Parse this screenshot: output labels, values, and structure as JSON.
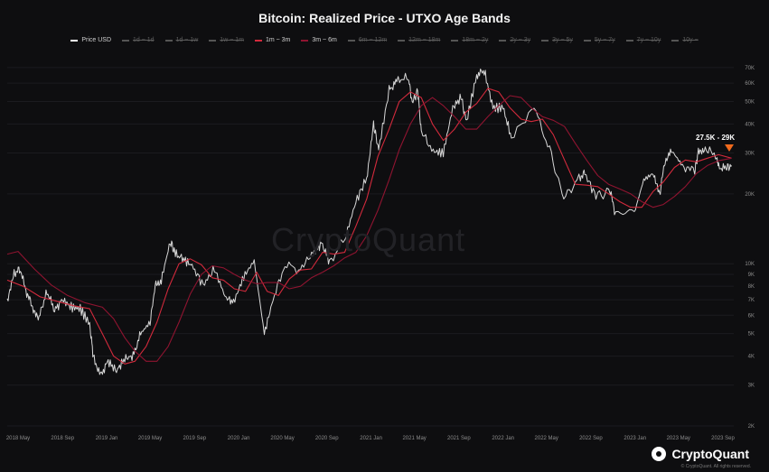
{
  "chart_data": {
    "type": "line",
    "title": "Bitcoin: Realized Price - UTXO Age Bands",
    "yscale": "log",
    "ylim": [
      2000,
      80000
    ],
    "x_ticks": [
      "2018 May",
      "2018 Sep",
      "2019 Jan",
      "2019 May",
      "2019 Sep",
      "2020 Jan",
      "2020 May",
      "2020 Sep",
      "2021 Jan",
      "2021 May",
      "2021 Sep",
      "2022 Jan",
      "2022 May",
      "2022 Sep",
      "2023 Jan",
      "2023 May",
      "2023 Sep"
    ],
    "y_ticks": [
      "70K",
      "60K",
      "50K",
      "40K",
      "30K",
      "20K",
      "10K",
      "9K",
      "8K",
      "7K",
      "6K",
      "5K",
      "4K",
      "3K",
      "2K"
    ],
    "y_tick_values": [
      70000,
      60000,
      50000,
      40000,
      30000,
      20000,
      10000,
      9000,
      8000,
      7000,
      6000,
      5000,
      4000,
      3000,
      2000
    ],
    "legend": [
      {
        "name": "Price USD",
        "color": "#ffffff",
        "active": true
      },
      {
        "name": "1d ~ 1d",
        "color": "#777777",
        "active": false
      },
      {
        "name": "1d ~ 1w",
        "color": "#777777",
        "active": false
      },
      {
        "name": "1w ~ 1m",
        "color": "#777777",
        "active": false
      },
      {
        "name": "1m ~ 3m",
        "color": "#d22a3c",
        "active": true
      },
      {
        "name": "3m ~ 6m",
        "color": "#8f1430",
        "active": true
      },
      {
        "name": "6m ~ 12m",
        "color": "#777777",
        "active": false
      },
      {
        "name": "12m ~ 18m",
        "color": "#777777",
        "active": false
      },
      {
        "name": "18m ~ 2y",
        "color": "#777777",
        "active": false
      },
      {
        "name": "2y ~ 3y",
        "color": "#777777",
        "active": false
      },
      {
        "name": "3y ~ 5y",
        "color": "#777777",
        "active": false
      },
      {
        "name": "5y ~ 7y",
        "color": "#777777",
        "active": false
      },
      {
        "name": "7y ~ 10y",
        "color": "#777777",
        "active": false
      },
      {
        "name": "10y ~",
        "color": "#777777",
        "active": false
      }
    ],
    "series": [
      {
        "name": "Price USD",
        "color": "#d8d8d8",
        "points": [
          [
            "2018-04-01",
            7000
          ],
          [
            "2018-04-20",
            9000
          ],
          [
            "2018-05-05",
            9500
          ],
          [
            "2018-05-25",
            7500
          ],
          [
            "2018-06-10",
            6500
          ],
          [
            "2018-06-28",
            5900
          ],
          [
            "2018-07-20",
            7600
          ],
          [
            "2018-08-10",
            6300
          ],
          [
            "2018-09-01",
            7000
          ],
          [
            "2018-09-25",
            6500
          ],
          [
            "2018-10-20",
            6400
          ],
          [
            "2018-11-15",
            5500
          ],
          [
            "2018-11-25",
            4000
          ],
          [
            "2018-12-15",
            3300
          ],
          [
            "2019-01-05",
            3800
          ],
          [
            "2019-01-28",
            3450
          ],
          [
            "2019-02-20",
            3900
          ],
          [
            "2019-03-15",
            4000
          ],
          [
            "2019-04-05",
            5000
          ],
          [
            "2019-05-01",
            5600
          ],
          [
            "2019-05-15",
            8000
          ],
          [
            "2019-06-01",
            8500
          ],
          [
            "2019-06-26",
            12500
          ],
          [
            "2019-07-10",
            11000
          ],
          [
            "2019-08-01",
            10500
          ],
          [
            "2019-08-25",
            9800
          ],
          [
            "2019-09-25",
            8100
          ],
          [
            "2019-10-26",
            9500
          ],
          [
            "2019-11-25",
            7200
          ],
          [
            "2019-12-18",
            6800
          ],
          [
            "2020-01-15",
            8800
          ],
          [
            "2020-02-13",
            10300
          ],
          [
            "2020-03-12",
            5000
          ],
          [
            "2020-04-05",
            7000
          ],
          [
            "2020-05-08",
            9900
          ],
          [
            "2020-06-20",
            9400
          ],
          [
            "2020-07-25",
            11000
          ],
          [
            "2020-08-17",
            12300
          ],
          [
            "2020-09-08",
            10200
          ],
          [
            "2020-10-21",
            12800
          ],
          [
            "2020-11-20",
            18500
          ],
          [
            "2020-12-20",
            23500
          ],
          [
            "2021-01-08",
            40000
          ],
          [
            "2021-01-22",
            31000
          ],
          [
            "2021-02-20",
            56000
          ],
          [
            "2021-03-13",
            61000
          ],
          [
            "2021-04-14",
            64000
          ],
          [
            "2021-04-25",
            49000
          ],
          [
            "2021-05-10",
            56000
          ],
          [
            "2021-05-20",
            37000
          ],
          [
            "2021-06-22",
            30500
          ],
          [
            "2021-07-20",
            30000
          ],
          [
            "2021-08-15",
            47000
          ],
          [
            "2021-09-07",
            52000
          ],
          [
            "2021-09-22",
            41000
          ],
          [
            "2021-10-20",
            65000
          ],
          [
            "2021-11-10",
            68000
          ],
          [
            "2021-12-04",
            47000
          ],
          [
            "2022-01-01",
            47000
          ],
          [
            "2022-01-24",
            35000
          ],
          [
            "2022-03-28",
            47000
          ],
          [
            "2022-05-10",
            31000
          ],
          [
            "2022-06-18",
            19000
          ],
          [
            "2022-07-30",
            23500
          ],
          [
            "2022-08-15",
            24500
          ],
          [
            "2022-09-15",
            19500
          ],
          [
            "2022-10-25",
            20500
          ],
          [
            "2022-11-09",
            16000
          ],
          [
            "2022-12-30",
            16500
          ],
          [
            "2023-01-25",
            23000
          ],
          [
            "2023-02-20",
            24500
          ],
          [
            "2023-03-10",
            20000
          ],
          [
            "2023-03-25",
            28000
          ],
          [
            "2023-04-14",
            30500
          ],
          [
            "2023-05-12",
            26500
          ],
          [
            "2023-06-15",
            25000
          ],
          [
            "2023-06-25",
            30500
          ],
          [
            "2023-07-14",
            31500
          ],
          [
            "2023-08-16",
            29000
          ],
          [
            "2023-08-20",
            26000
          ],
          [
            "2023-09-10",
            25800
          ],
          [
            "2023-09-25",
            26500
          ]
        ]
      },
      {
        "name": "1m ~ 3m",
        "color": "#d22a3c",
        "points": [
          [
            "2018-04-01",
            8500
          ],
          [
            "2018-05-15",
            8000
          ],
          [
            "2018-07-01",
            7200
          ],
          [
            "2018-08-15",
            6900
          ],
          [
            "2018-10-01",
            6600
          ],
          [
            "2018-11-15",
            6400
          ],
          [
            "2018-12-20",
            5000
          ],
          [
            "2019-01-20",
            4000
          ],
          [
            "2019-02-20",
            3700
          ],
          [
            "2019-03-20",
            3800
          ],
          [
            "2019-04-20",
            4400
          ],
          [
            "2019-05-20",
            5600
          ],
          [
            "2019-06-20",
            7800
          ],
          [
            "2019-07-20",
            10000
          ],
          [
            "2019-08-20",
            10500
          ],
          [
            "2019-09-20",
            9900
          ],
          [
            "2019-10-20",
            8700
          ],
          [
            "2019-11-20",
            8500
          ],
          [
            "2019-12-20",
            7800
          ],
          [
            "2020-01-20",
            7600
          ],
          [
            "2020-02-20",
            9200
          ],
          [
            "2020-03-20",
            7600
          ],
          [
            "2020-04-20",
            7300
          ],
          [
            "2020-05-20",
            8600
          ],
          [
            "2020-06-20",
            9400
          ],
          [
            "2020-07-20",
            9500
          ],
          [
            "2020-08-20",
            11200
          ],
          [
            "2020-09-20",
            11000
          ],
          [
            "2020-10-20",
            11200
          ],
          [
            "2020-11-20",
            14500
          ],
          [
            "2020-12-20",
            19000
          ],
          [
            "2021-01-20",
            29000
          ],
          [
            "2021-02-20",
            38000
          ],
          [
            "2021-03-20",
            50000
          ],
          [
            "2021-04-20",
            55000
          ],
          [
            "2021-05-20",
            52000
          ],
          [
            "2021-06-20",
            40000
          ],
          [
            "2021-07-20",
            34000
          ],
          [
            "2021-08-20",
            38000
          ],
          [
            "2021-09-20",
            45000
          ],
          [
            "2021-10-20",
            49000
          ],
          [
            "2021-11-20",
            57000
          ],
          [
            "2021-12-20",
            55000
          ],
          [
            "2022-01-20",
            47000
          ],
          [
            "2022-02-20",
            42000
          ],
          [
            "2022-03-20",
            41000
          ],
          [
            "2022-04-20",
            42000
          ],
          [
            "2022-05-20",
            36000
          ],
          [
            "2022-06-20",
            28000
          ],
          [
            "2022-07-20",
            22000
          ],
          [
            "2022-08-20",
            21800
          ],
          [
            "2022-09-20",
            21500
          ],
          [
            "2022-10-20",
            20000
          ],
          [
            "2022-11-20",
            18500
          ],
          [
            "2022-12-20",
            17500
          ],
          [
            "2023-01-20",
            17500
          ],
          [
            "2023-02-20",
            20500
          ],
          [
            "2023-03-20",
            22500
          ],
          [
            "2023-04-20",
            26000
          ],
          [
            "2023-05-20",
            28000
          ],
          [
            "2023-06-20",
            27500
          ],
          [
            "2023-07-20",
            28500
          ],
          [
            "2023-08-20",
            29500
          ],
          [
            "2023-09-25",
            28500
          ]
        ]
      },
      {
        "name": "3m ~ 6m",
        "color": "#8f1430",
        "points": [
          [
            "2018-04-01",
            11000
          ],
          [
            "2018-05-01",
            11300
          ],
          [
            "2018-06-15",
            9500
          ],
          [
            "2018-08-01",
            8100
          ],
          [
            "2018-09-15",
            7300
          ],
          [
            "2018-11-01",
            6800
          ],
          [
            "2018-12-20",
            6500
          ],
          [
            "2019-01-20",
            5800
          ],
          [
            "2019-02-20",
            4800
          ],
          [
            "2019-03-20",
            4200
          ],
          [
            "2019-04-20",
            3800
          ],
          [
            "2019-05-20",
            3800
          ],
          [
            "2019-06-20",
            4400
          ],
          [
            "2019-07-20",
            5600
          ],
          [
            "2019-08-20",
            7400
          ],
          [
            "2019-09-20",
            9000
          ],
          [
            "2019-10-20",
            9800
          ],
          [
            "2019-11-20",
            9600
          ],
          [
            "2019-12-20",
            9000
          ],
          [
            "2020-01-20",
            8500
          ],
          [
            "2020-02-20",
            8200
          ],
          [
            "2020-03-20",
            8300
          ],
          [
            "2020-04-20",
            8300
          ],
          [
            "2020-05-20",
            7800
          ],
          [
            "2020-06-20",
            8000
          ],
          [
            "2020-07-20",
            8700
          ],
          [
            "2020-08-20",
            9200
          ],
          [
            "2020-09-20",
            9800
          ],
          [
            "2020-10-20",
            10600
          ],
          [
            "2020-11-20",
            11200
          ],
          [
            "2020-12-20",
            13200
          ],
          [
            "2021-01-20",
            17000
          ],
          [
            "2021-02-20",
            23000
          ],
          [
            "2021-03-20",
            31000
          ],
          [
            "2021-04-20",
            40000
          ],
          [
            "2021-05-20",
            48000
          ],
          [
            "2021-06-20",
            52000
          ],
          [
            "2021-07-20",
            48000
          ],
          [
            "2021-08-20",
            43000
          ],
          [
            "2021-09-20",
            38000
          ],
          [
            "2021-10-20",
            38000
          ],
          [
            "2021-11-20",
            43000
          ],
          [
            "2021-12-20",
            48000
          ],
          [
            "2022-01-20",
            53000
          ],
          [
            "2022-02-20",
            52000
          ],
          [
            "2022-03-20",
            47000
          ],
          [
            "2022-04-20",
            43000
          ],
          [
            "2022-05-20",
            41500
          ],
          [
            "2022-06-20",
            39000
          ],
          [
            "2022-07-20",
            33000
          ],
          [
            "2022-08-20",
            28000
          ],
          [
            "2022-09-20",
            24000
          ],
          [
            "2022-10-20",
            22000
          ],
          [
            "2022-11-20",
            21000
          ],
          [
            "2022-12-20",
            20000
          ],
          [
            "2023-01-20",
            18500
          ],
          [
            "2023-02-20",
            17500
          ],
          [
            "2023-03-20",
            18000
          ],
          [
            "2023-04-20",
            19500
          ],
          [
            "2023-05-20",
            21500
          ],
          [
            "2023-06-20",
            24500
          ],
          [
            "2023-07-20",
            26500
          ],
          [
            "2023-08-20",
            27800
          ],
          [
            "2023-09-25",
            28500
          ]
        ]
      }
    ],
    "annotations": [
      {
        "text": "27.5K - 29K",
        "date": "2023-09-10",
        "color": "#f06a1d"
      }
    ]
  },
  "watermark": "CryptoQuant",
  "brand": "CryptoQuant",
  "copyright": "© CryptoQuant. All rights reserved."
}
